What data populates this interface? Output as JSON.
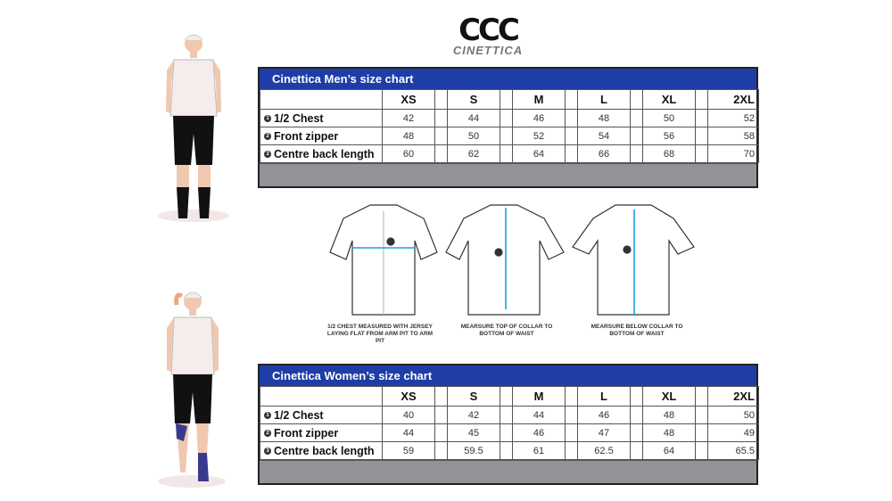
{
  "logo": {
    "mark": "CCC",
    "word": "CINETTICA"
  },
  "sizes": [
    "XS",
    "S",
    "M",
    "L",
    "XL",
    "2XL"
  ],
  "men": {
    "title": "Cinettica Men’s size chart",
    "rows": [
      {
        "n": "1",
        "label": "1/2 Chest",
        "values": [
          "42",
          "44",
          "46",
          "48",
          "50",
          "52"
        ]
      },
      {
        "n": "2",
        "label": "Front zipper",
        "values": [
          "48",
          "50",
          "52",
          "54",
          "56",
          "58"
        ]
      },
      {
        "n": "3",
        "label": "Centre back length",
        "values": [
          "60",
          "62",
          "64",
          "66",
          "68",
          "70"
        ]
      }
    ]
  },
  "women": {
    "title": "Cinettica Women’s size chart",
    "rows": [
      {
        "n": "1",
        "label": "1/2 Chest",
        "values": [
          "40",
          "42",
          "44",
          "46",
          "48",
          "50"
        ]
      },
      {
        "n": "2",
        "label": "Front zipper",
        "values": [
          "44",
          "45",
          "46",
          "47",
          "48",
          "49"
        ]
      },
      {
        "n": "3",
        "label": "Centre back length",
        "values": [
          "59",
          "59.5",
          "61",
          "62.5",
          "64",
          "65.5"
        ]
      }
    ]
  },
  "captions": [
    "1/2 CHEST MEASURED WITH JERSEY LAYING FLAT FROM ARM PIT TO ARM PIT",
    "MEARSURE TOP OF COLLAR TO BOTTOM OF WAIST",
    "MEARSURE BELOW COLLAR TO BOTTOM OF WAIST"
  ],
  "colors": {
    "header": "#1e3da6",
    "footer": "#929397",
    "arrow": "#1aa3e0"
  }
}
